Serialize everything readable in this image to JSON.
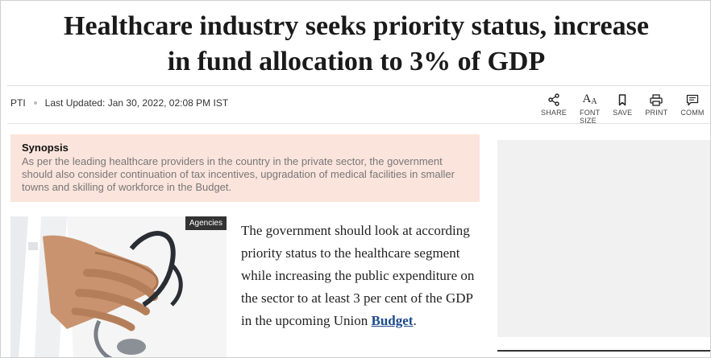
{
  "headline": {
    "line1": "Healthcare industry seeks priority status, increase",
    "line2": "in fund allocation to 3% of GDP"
  },
  "byline": {
    "author": "PTI",
    "updated": "Last Updated: Jan 30, 2022, 02:08 PM IST"
  },
  "toolbar": {
    "share": "SHARE",
    "font_size": "FONT SIZE",
    "font_size_glyph_big": "A",
    "font_size_glyph_small": "A",
    "save": "SAVE",
    "print": "PRINT",
    "comment": "COMM"
  },
  "synopsis": {
    "title": "Synopsis",
    "text": "As per the leading healthcare providers in the country in the private sector, the government should also consider continuation of tax incentives, upgradation of medical facilities in smaller towns and skilling of workforce in the Budget."
  },
  "photo": {
    "credit": "Agencies"
  },
  "article": {
    "paragraph_start": "The government should look at according priority status to the healthcare segment while increasing the public expenditure on the sector to at least 3 per cent of the GDP in the upcoming Union ",
    "link": "Budget",
    "paragraph_end": "."
  },
  "colors": {
    "synopsis_bg": "#fbe4dc",
    "link": "#1c4b8c",
    "ad_bg": "#f1f1f1"
  }
}
